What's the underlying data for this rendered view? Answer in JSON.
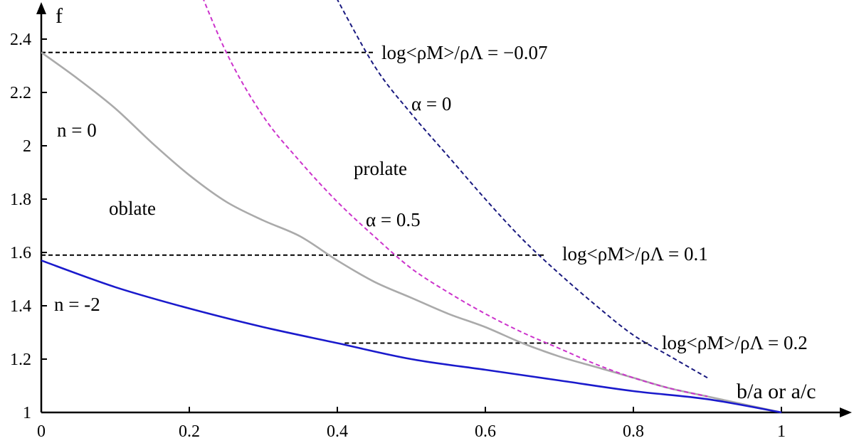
{
  "chart_data": {
    "type": "line",
    "xlabel": "b/a or a/c",
    "ylabel": "f",
    "xlim": [
      0,
      1.08
    ],
    "ylim": [
      1,
      2.52
    ],
    "x_ticks": [
      "0",
      "0.2",
      "0.4",
      "0.6",
      "0.8",
      "1"
    ],
    "y_ticks": [
      "1",
      "1.2",
      "1.4",
      "1.6",
      "1.8",
      "2",
      "2.2",
      "2.4"
    ],
    "series": [
      {
        "name": "n = 0",
        "color": "#aaaaaa",
        "style": "solid",
        "x": [
          0,
          0.05,
          0.1,
          0.15,
          0.2,
          0.25,
          0.3,
          0.35,
          0.4,
          0.45,
          0.5,
          0.55,
          0.6,
          0.65,
          0.7,
          0.75,
          0.8,
          0.85,
          0.9,
          0.95,
          1.0
        ],
        "y": [
          2.35,
          2.25,
          2.14,
          2.01,
          1.89,
          1.79,
          1.72,
          1.66,
          1.57,
          1.49,
          1.43,
          1.37,
          1.32,
          1.26,
          1.21,
          1.17,
          1.13,
          1.09,
          1.06,
          1.03,
          1.0
        ]
      },
      {
        "name": "n = -2",
        "color": "#1a1acc",
        "style": "solid",
        "x": [
          0,
          0.1,
          0.2,
          0.3,
          0.4,
          0.5,
          0.6,
          0.7,
          0.8,
          0.9,
          1.0
        ],
        "y": [
          1.57,
          1.47,
          1.39,
          1.32,
          1.26,
          1.2,
          1.16,
          1.12,
          1.08,
          1.05,
          1.0
        ]
      },
      {
        "name": "α = 0.5",
        "color": "#cc33cc",
        "style": "dashed",
        "x": [
          0.2,
          0.25,
          0.3,
          0.35,
          0.4,
          0.45,
          0.5,
          0.55,
          0.6,
          0.65,
          0.7,
          0.75,
          0.8,
          0.85,
          0.9
        ],
        "y": [
          2.68,
          2.35,
          2.11,
          1.94,
          1.79,
          1.66,
          1.54,
          1.45,
          1.37,
          1.3,
          1.24,
          1.18,
          1.13,
          1.09,
          1.06
        ]
      },
      {
        "name": "α = 0",
        "color": "#1a1a80",
        "style": "dashed",
        "x": [
          0.39,
          0.45,
          0.5,
          0.55,
          0.6,
          0.65,
          0.7,
          0.75,
          0.8,
          0.85,
          0.9
        ],
        "y": [
          2.6,
          2.3,
          2.12,
          1.96,
          1.8,
          1.65,
          1.52,
          1.4,
          1.29,
          1.21,
          1.13
        ]
      }
    ],
    "reference_lines": [
      {
        "label": "log<ρM>/ρΛ = −0.07",
        "y": 2.35,
        "x_start": 0,
        "x_end": 0.45
      },
      {
        "label": "log<ρM>/ρΛ = 0.1",
        "y": 1.59,
        "x_start": 0,
        "x_end": 0.68
      },
      {
        "label": "log<ρM>/ρΛ = 0.2",
        "y": 1.26,
        "x_start": 0.41,
        "x_end": 0.82
      }
    ],
    "annotations": [
      "n = 0",
      "oblate",
      "prolate",
      "α = 0",
      "α = 0.5",
      "n = -2"
    ],
    "grid": false,
    "legend": "none"
  }
}
